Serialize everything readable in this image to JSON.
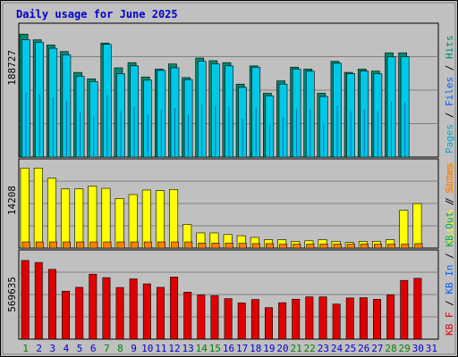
{
  "chart_data": {
    "title": "Daily usage for June 2025",
    "type": "bar",
    "x": [
      "1",
      "2",
      "3",
      "4",
      "5",
      "6",
      "7",
      "8",
      "9",
      "10",
      "11",
      "12",
      "13",
      "14",
      "15",
      "16",
      "17",
      "18",
      "19",
      "20",
      "21",
      "22",
      "23",
      "24",
      "25",
      "26",
      "27",
      "28",
      "29",
      "30",
      "31"
    ],
    "weekend_days": [
      1,
      7,
      8,
      14,
      15,
      21,
      22,
      28,
      29
    ],
    "colors": {
      "title": "#0000cc",
      "background": "#c0c0c0",
      "hits": "#008a70",
      "files": "#00c8e8",
      "pages": "#00aacc",
      "visits": "#ffff00",
      "sites": "#ff8000",
      "kb_in": "#0060ff",
      "kb_out": "#00aa55",
      "kb_f": "#e00000",
      "weekday_label": "#0000cc",
      "weekend_label": "#008000"
    },
    "panels": [
      {
        "name": "hits-files-pages",
        "max_label": "188727",
        "ymax": 200000,
        "legend": [
          {
            "text": "Pages",
            "color": "#00aacc"
          },
          {
            "text": "Files",
            "color": "#0060ff"
          },
          {
            "text": "Hits",
            "color": "#008a70"
          }
        ],
        "series": [
          {
            "name": "Hits",
            "values": [
              188727,
              180000,
              172000,
              162000,
              130000,
              120000,
              175000,
              137000,
              145000,
              123000,
              135000,
              143000,
              122000,
              152000,
              148000,
              145000,
              112000,
              140000,
              98000,
              117000,
              138000,
              135000,
              98000,
              147000,
              130000,
              135000,
              132000,
              160000,
              160000,
              null,
              null
            ]
          },
          {
            "name": "Files",
            "values": [
              180000,
              176000,
              167000,
              157000,
              124000,
              116000,
              173000,
              128000,
              140000,
              118000,
              133000,
              137000,
              119000,
              147000,
              143000,
              140000,
              107000,
              138000,
              94000,
              112000,
              135000,
              132000,
              93000,
              144000,
              128000,
              132000,
              128000,
              154000,
              154000,
              null,
              null
            ]
          }
        ]
      },
      {
        "name": "visits-sites",
        "max_label": "14208",
        "ymax": 15200,
        "legend": [
          {
            "text": "Visits",
            "color": "#ffff00"
          },
          {
            "text": "Sites",
            "color": "#ff8000"
          }
        ],
        "series": [
          {
            "name": "Visits",
            "values": [
              14208,
              14208,
              12400,
              10500,
              10500,
              11000,
              10600,
              8800,
              9500,
              10300,
              10200,
              10400,
              4200,
              2700,
              2700,
              2400,
              2200,
              1900,
              1500,
              1500,
              1200,
              1300,
              1500,
              1200,
              1000,
              1200,
              1200,
              1500,
              6700,
              7900,
              null
            ]
          },
          {
            "name": "Sites",
            "values": [
              1100,
              1100,
              1100,
              1100,
              1100,
              1100,
              1100,
              1100,
              1100,
              1100,
              1100,
              1100,
              1100,
              900,
              900,
              900,
              850,
              800,
              800,
              700,
              700,
              700,
              700,
              700,
              700,
              700,
              700,
              700,
              700,
              800,
              null
            ]
          }
        ]
      },
      {
        "name": "kbytes",
        "max_label": "569635",
        "ymax": 620000,
        "legend": [
          {
            "text": "KB F",
            "color": "#e00000"
          },
          {
            "text": "KB In",
            "color": "#0060ff"
          },
          {
            "text": "KB Out",
            "color": "#00aa55"
          },
          {
            "text": "Sites",
            "color": "#ff8000"
          }
        ],
        "series": [
          {
            "name": "KB F",
            "values": [
              569635,
              555000,
              505000,
              347000,
              375000,
              470000,
              445000,
              374000,
              436000,
              400000,
              375000,
              450000,
              340000,
              320000,
              315000,
              293000,
              262000,
              287000,
              228000,
              264000,
              289000,
              306000,
              306000,
              254000,
              298000,
              300000,
              288000,
              320000,
              425000,
              440000,
              null
            ]
          }
        ]
      }
    ]
  }
}
